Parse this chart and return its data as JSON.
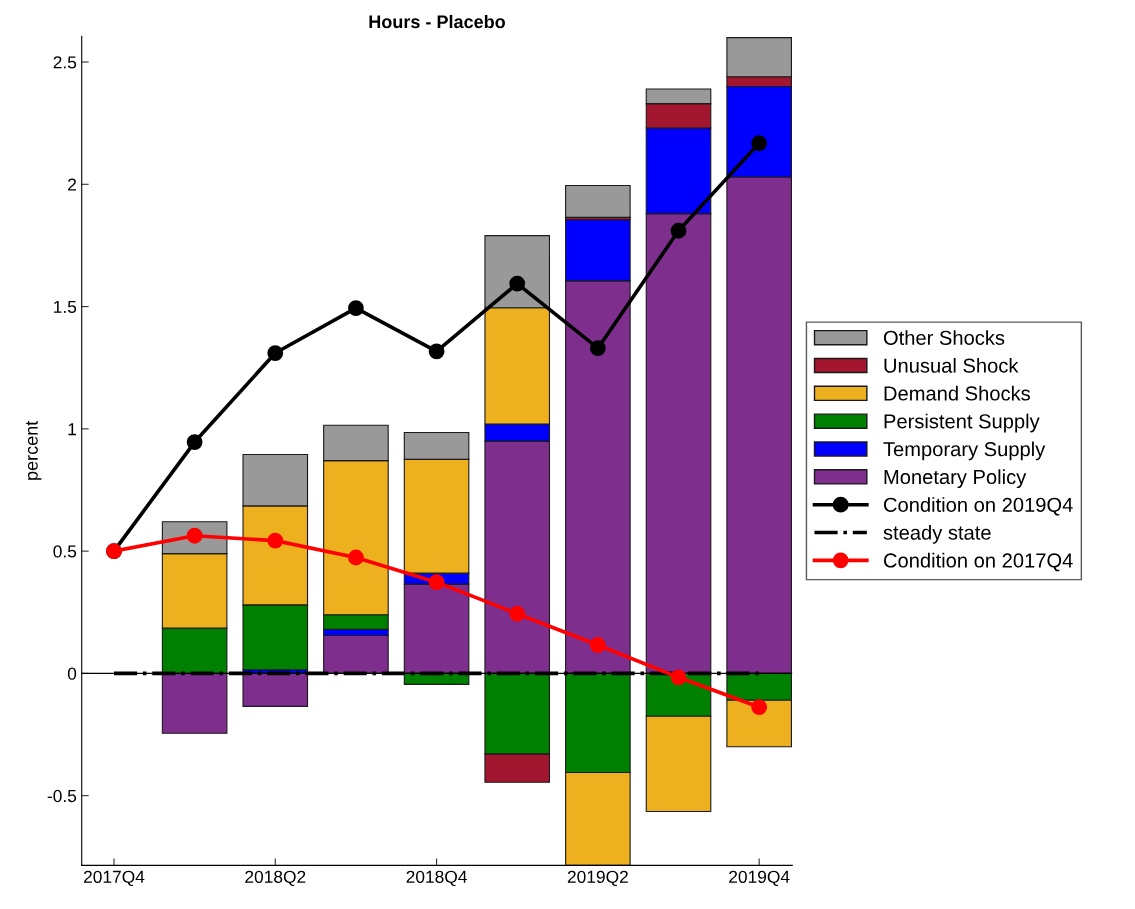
{
  "chart_data": {
    "type": "bar",
    "title": "Hours - Placebo",
    "ylabel": "percent",
    "stacked": true,
    "legend": "right",
    "grid": false,
    "categories": [
      "2017Q4",
      null,
      "2018Q2",
      null,
      "2018Q4",
      null,
      "2019Q2",
      null,
      "2019Q4"
    ],
    "ylim": [
      -0.785,
      2.605
    ],
    "yticks": [
      -0.5,
      0,
      0.5,
      1,
      1.5,
      2,
      2.5
    ],
    "ref_lines": [
      {
        "axis": "y",
        "value": 0,
        "color": "#000000"
      }
    ],
    "series": [
      {
        "name": "Monetary Policy",
        "color": "#7e2f8e",
        "values": [
          null,
          -0.245,
          -0.135,
          0.155,
          0.365,
          0.95,
          1.605,
          1.88,
          2.03
        ]
      },
      {
        "name": "Temporary Supply",
        "color": "#0000ff",
        "values": [
          null,
          null,
          0.015,
          0.025,
          0.045,
          0.07,
          0.25,
          0.35,
          0.37
        ]
      },
      {
        "name": "Persistent Supply",
        "color": "#008000",
        "values": [
          null,
          0.185,
          0.265,
          0.06,
          -0.045,
          -0.33,
          -0.405,
          -0.175,
          -0.11
        ]
      },
      {
        "name": "Demand Shocks",
        "color": "#edb120",
        "values": [
          null,
          0.305,
          0.405,
          0.63,
          0.465,
          0.475,
          -0.38,
          -0.39,
          -0.19
        ]
      },
      {
        "name": "Unusual Shock",
        "color": "#a21630",
        "values": [
          null,
          null,
          null,
          null,
          null,
          -0.115,
          0.01,
          0.1,
          0.04
        ]
      },
      {
        "name": "Other Shocks",
        "color": "#999999",
        "values": [
          null,
          0.13,
          0.21,
          0.145,
          0.11,
          0.295,
          0.13,
          0.06,
          0.16
        ]
      },
      {
        "name": "Condition on 2019Q4",
        "type": "line",
        "color": "#000000",
        "marker": "circle",
        "line_style": "solid",
        "values": [
          0.5,
          0.946,
          1.31,
          1.494,
          1.317,
          1.594,
          1.33,
          1.81,
          2.168
        ]
      },
      {
        "name": "steady state",
        "type": "line",
        "color": "#000000",
        "marker": "none",
        "line_style": "dashdot",
        "values": [
          0,
          0,
          0,
          0,
          0,
          0,
          0,
          0,
          0
        ]
      },
      {
        "name": "Condition on 2017Q4",
        "type": "line",
        "color": "#ff0000",
        "marker": "circle",
        "line_style": "solid",
        "values": [
          0.5,
          0.563,
          0.543,
          0.474,
          0.373,
          0.244,
          0.116,
          -0.016,
          -0.138
        ]
      }
    ]
  }
}
